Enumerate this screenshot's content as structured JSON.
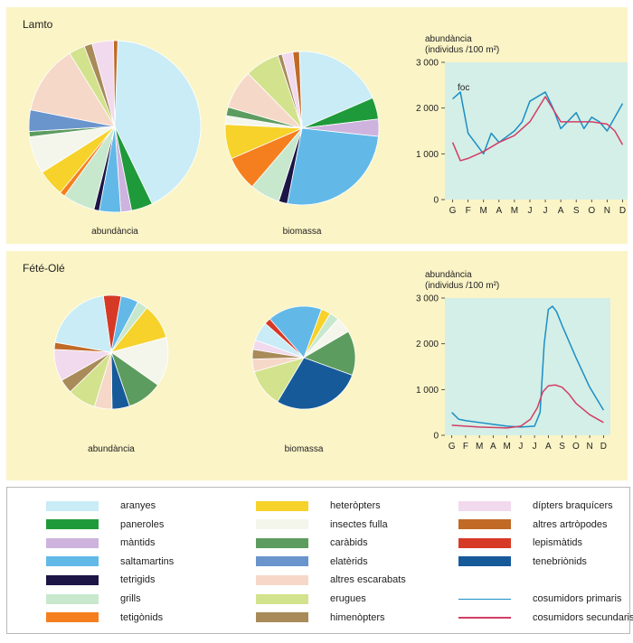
{
  "panels": [
    {
      "title": "Lamto"
    },
    {
      "title": "Fété-Olé"
    }
  ],
  "colors": {
    "aranyes": "#c9ecf6",
    "paneroles": "#1f9a3a",
    "mantids": "#cdb3dd",
    "saltamartins": "#62b9e8",
    "tetrigids": "#1c1545",
    "grills": "#c8e8cd",
    "tetigonids": "#f57f1e",
    "heteropters": "#f6d22a",
    "insectes_fulla": "#f4f6ec",
    "carabids": "#5d9c5f",
    "elaterids": "#6a94cc",
    "altres_escarabats": "#f6d8c8",
    "erugues": "#d3e28c",
    "himenopters": "#a98b5a",
    "dipters_braquicers": "#f1d9ee",
    "altres_artropodes": "#c06a26",
    "lepismatids": "#d63a26",
    "tenebrionids": "#175a9a",
    "primaris": "#1a8ec6",
    "secundaris": "#d23d66",
    "plot_bg": "#d4efe7"
  },
  "chart_data": [
    {
      "type": "pie",
      "panel": "Lamto",
      "xlabel": "abundància",
      "start_deg": 272,
      "slices": [
        {
          "key": "aranyes",
          "value": 42
        },
        {
          "key": "paneroles",
          "value": 4
        },
        {
          "key": "mantids",
          "value": 2
        },
        {
          "key": "saltamartins",
          "value": 4
        },
        {
          "key": "tetrigids",
          "value": 1
        },
        {
          "key": "grills",
          "value": 6
        },
        {
          "key": "tetigonids",
          "value": 1
        },
        {
          "key": "heteropters",
          "value": 5
        },
        {
          "key": "insectes_fulla",
          "value": 7
        },
        {
          "key": "carabids",
          "value": 1
        },
        {
          "key": "elaterids",
          "value": 4
        },
        {
          "key": "altres_escarabats",
          "value": 13
        },
        {
          "key": "erugues",
          "value": 3
        },
        {
          "key": "himenopters",
          "value": 1.5
        },
        {
          "key": "dipters_braquicers",
          "value": 4
        },
        {
          "key": "altres_artropodes",
          "value": 0.8
        }
      ]
    },
    {
      "type": "pie",
      "panel": "Lamto",
      "xlabel": "biomassa",
      "start_deg": 268,
      "slices": [
        {
          "key": "aranyes",
          "value": 21
        },
        {
          "key": "paneroles",
          "value": 5
        },
        {
          "key": "mantids",
          "value": 4
        },
        {
          "key": "saltamartins",
          "value": 29
        },
        {
          "key": "tetrigids",
          "value": 2
        },
        {
          "key": "grills",
          "value": 7
        },
        {
          "key": "tetigonids",
          "value": 8
        },
        {
          "key": "heteropters",
          "value": 8
        },
        {
          "key": "insectes_fulla",
          "value": 2
        },
        {
          "key": "carabids",
          "value": 2
        },
        {
          "key": "altres_escarabats",
          "value": 9
        },
        {
          "key": "erugues",
          "value": 8
        },
        {
          "key": "himenopters",
          "value": 1
        },
        {
          "key": "dipters_braquicers",
          "value": 2.5
        },
        {
          "key": "altres_artropodes",
          "value": 1.5
        }
      ]
    },
    {
      "type": "line",
      "panel": "Lamto",
      "ylabel_line1": "abundància",
      "ylabel_line2": "(individus /100 m²)",
      "annotation": "foc",
      "x": [
        "G",
        "F",
        "M",
        "A",
        "M",
        "J",
        "J",
        "A",
        "S",
        "O",
        "N",
        "D"
      ],
      "yticks": [
        "0",
        "1 000",
        "2 000",
        "3 000"
      ],
      "ylim": [
        0,
        3000
      ],
      "series": [
        {
          "key": "primaris",
          "points": [
            [
              0,
              2200
            ],
            [
              0.5,
              2350
            ],
            [
              1,
              1450
            ],
            [
              2,
              1000
            ],
            [
              2.5,
              1450
            ],
            [
              3,
              1250
            ],
            [
              4,
              1500
            ],
            [
              4.5,
              1700
            ],
            [
              5,
              2150
            ],
            [
              6,
              2350
            ],
            [
              6.5,
              2000
            ],
            [
              7,
              1550
            ],
            [
              8,
              1900
            ],
            [
              8.5,
              1550
            ],
            [
              9,
              1800
            ],
            [
              9.5,
              1700
            ],
            [
              10,
              1500
            ],
            [
              11,
              2100
            ]
          ]
        },
        {
          "key": "secundaris",
          "points": [
            [
              0,
              1250
            ],
            [
              0.5,
              850
            ],
            [
              1,
              900
            ],
            [
              2,
              1050
            ],
            [
              3,
              1250
            ],
            [
              4,
              1400
            ],
            [
              5,
              1700
            ],
            [
              6,
              2250
            ],
            [
              7,
              1700
            ],
            [
              8,
              1700
            ],
            [
              9,
              1700
            ],
            [
              10,
              1650
            ],
            [
              10.5,
              1500
            ],
            [
              11,
              1200
            ]
          ]
        }
      ]
    },
    {
      "type": "pie",
      "panel": "Fété-Olé",
      "xlabel": "abundància",
      "start_deg": 262,
      "slices": [
        {
          "key": "lepismatids",
          "value": 5
        },
        {
          "key": "saltamartins",
          "value": 5
        },
        {
          "key": "grills",
          "value": 3
        },
        {
          "key": "heteropters",
          "value": 10
        },
        {
          "key": "insectes_fulla",
          "value": 14
        },
        {
          "key": "carabids",
          "value": 10
        },
        {
          "key": "tenebrionids",
          "value": 5
        },
        {
          "key": "altres_escarabats",
          "value": 5
        },
        {
          "key": "erugues",
          "value": 8
        },
        {
          "key": "himenopters",
          "value": 4
        },
        {
          "key": "dipters_braquicers",
          "value": 9
        },
        {
          "key": "altres_artropodes",
          "value": 2
        },
        {
          "key": "aranyes",
          "value": 20
        }
      ]
    },
    {
      "type": "pie",
      "panel": "Fété-Olé",
      "xlabel": "biomassa",
      "start_deg": 290,
      "slices": [
        {
          "key": "heteropters",
          "value": 3
        },
        {
          "key": "grills",
          "value": 3
        },
        {
          "key": "insectes_fulla",
          "value": 5
        },
        {
          "key": "carabids",
          "value": 14
        },
        {
          "key": "tenebrionids",
          "value": 28
        },
        {
          "key": "erugues",
          "value": 12
        },
        {
          "key": "altres_escarabats",
          "value": 4
        },
        {
          "key": "himenopters",
          "value": 3
        },
        {
          "key": "dipters_braquicers",
          "value": 3
        },
        {
          "key": "aranyes",
          "value": 6
        },
        {
          "key": "lepismatids",
          "value": 2
        },
        {
          "key": "saltamartins",
          "value": 17
        }
      ]
    },
    {
      "type": "line",
      "panel": "Fété-Olé",
      "ylabel_line1": "abundància",
      "ylabel_line2": "(individus /100 m²)",
      "x": [
        "G",
        "F",
        "M",
        "A",
        "M",
        "J",
        "J",
        "A",
        "S",
        "O",
        "N",
        "D"
      ],
      "yticks": [
        "0",
        "1 000",
        "2 000",
        "3 000"
      ],
      "ylim": [
        0,
        3000
      ],
      "series": [
        {
          "key": "primaris",
          "points": [
            [
              0,
              500
            ],
            [
              0.5,
              350
            ],
            [
              1,
              320
            ],
            [
              2,
              280
            ],
            [
              3,
              240
            ],
            [
              4,
              200
            ],
            [
              5,
              180
            ],
            [
              6,
              200
            ],
            [
              6.4,
              500
            ],
            [
              6.7,
              2000
            ],
            [
              7,
              2750
            ],
            [
              7.3,
              2820
            ],
            [
              7.6,
              2700
            ],
            [
              8,
              2400
            ],
            [
              9,
              1700
            ],
            [
              10,
              1050
            ],
            [
              11,
              550
            ]
          ]
        },
        {
          "key": "secundaris",
          "points": [
            [
              0,
              220
            ],
            [
              1,
              200
            ],
            [
              2,
              180
            ],
            [
              3,
              170
            ],
            [
              4,
              160
            ],
            [
              5,
              200
            ],
            [
              5.7,
              350
            ],
            [
              6.2,
              600
            ],
            [
              6.6,
              950
            ],
            [
              7,
              1080
            ],
            [
              7.5,
              1100
            ],
            [
              8,
              1050
            ],
            [
              8.5,
              900
            ],
            [
              9,
              700
            ],
            [
              10,
              450
            ],
            [
              11,
              280
            ]
          ]
        }
      ]
    }
  ],
  "legend": [
    {
      "key": "aranyes",
      "label": "aranyes",
      "col": 0,
      "row": 0
    },
    {
      "key": "paneroles",
      "label": "paneroles",
      "col": 0,
      "row": 1
    },
    {
      "key": "mantids",
      "label": "màntids",
      "col": 0,
      "row": 2
    },
    {
      "key": "saltamartins",
      "label": "saltamartins",
      "col": 0,
      "row": 3
    },
    {
      "key": "tetrigids",
      "label": "tetrigids",
      "col": 0,
      "row": 4
    },
    {
      "key": "grills",
      "label": "grills",
      "col": 0,
      "row": 5
    },
    {
      "key": "tetigonids",
      "label": "tetigònids",
      "col": 0,
      "row": 6
    },
    {
      "key": "heteropters",
      "label": "heteròpters",
      "col": 1,
      "row": 0
    },
    {
      "key": "insectes_fulla",
      "label": "insectes fulla",
      "col": 1,
      "row": 1
    },
    {
      "key": "carabids",
      "label": "caràbids",
      "col": 1,
      "row": 2
    },
    {
      "key": "elaterids",
      "label": "elatèrids",
      "col": 1,
      "row": 3
    },
    {
      "key": "altres_escarabats",
      "label": "altres escarabats",
      "col": 1,
      "row": 4
    },
    {
      "key": "erugues",
      "label": "erugues",
      "col": 1,
      "row": 5
    },
    {
      "key": "himenopters",
      "label": "himenòpters",
      "col": 1,
      "row": 6
    },
    {
      "key": "dipters_braquicers",
      "label": "dípters braquícers",
      "col": 2,
      "row": 0
    },
    {
      "key": "altres_artropodes",
      "label": "altres artròpodes",
      "col": 2,
      "row": 1
    },
    {
      "key": "lepismatids",
      "label": "lepismàtids",
      "col": 2,
      "row": 2
    },
    {
      "key": "tenebrionids",
      "label": "tenebriònids",
      "col": 2,
      "row": 3
    },
    {
      "key": "primaris",
      "label": "cosumidors primaris",
      "col": 2,
      "row": 5,
      "line": true
    },
    {
      "key": "secundaris",
      "label": "cosumidors secundaris",
      "col": 2,
      "row": 6,
      "line": true
    }
  ]
}
